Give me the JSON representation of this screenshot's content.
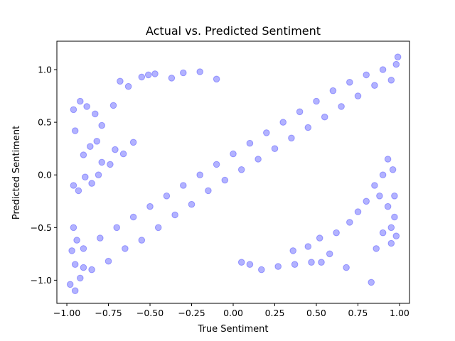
{
  "chart_data": {
    "type": "scatter",
    "title": "Actual vs. Predicted Sentiment",
    "xlabel": "True Sentiment",
    "ylabel": "Predicted Sentiment",
    "xlim": [
      -1.06,
      1.06
    ],
    "ylim": [
      -1.22,
      1.27
    ],
    "xticks": [
      -1.0,
      -0.75,
      -0.5,
      -0.25,
      0.0,
      0.25,
      0.5,
      0.75,
      1.0
    ],
    "xtick_labels": [
      "−1.00",
      "−0.75",
      "−0.50",
      "−0.25",
      "0.00",
      "0.25",
      "0.50",
      "0.75",
      "1.00"
    ],
    "yticks": [
      -1.0,
      -0.5,
      0.0,
      0.5,
      1.0
    ],
    "ytick_labels": [
      "−1.0",
      "−0.5",
      "0.0",
      "0.5",
      "1.0"
    ],
    "grid": false,
    "legend": "none",
    "color": "#0000ff",
    "marker_alpha": 0.3,
    "series": [
      {
        "points": [
          [
            -0.98,
            -1.04
          ],
          [
            -0.95,
            -1.1
          ],
          [
            -0.92,
            -0.98
          ],
          [
            -0.9,
            -0.88
          ],
          [
            -0.97,
            -0.72
          ],
          [
            -0.94,
            -0.62
          ],
          [
            -0.96,
            -0.5
          ],
          [
            -0.95,
            -0.85
          ],
          [
            -0.9,
            -0.7
          ],
          [
            -0.85,
            -0.9
          ],
          [
            -0.8,
            -0.6
          ],
          [
            -0.75,
            -0.82
          ],
          [
            -0.7,
            -0.5
          ],
          [
            -0.65,
            -0.7
          ],
          [
            -0.6,
            -0.4
          ],
          [
            -0.55,
            -0.62
          ],
          [
            -0.5,
            -0.3
          ],
          [
            -0.45,
            -0.5
          ],
          [
            -0.4,
            -0.2
          ],
          [
            -0.35,
            -0.38
          ],
          [
            -0.3,
            -0.1
          ],
          [
            -0.25,
            -0.28
          ],
          [
            -0.2,
            0.0
          ],
          [
            -0.15,
            -0.15
          ],
          [
            -0.1,
            0.1
          ],
          [
            -0.05,
            -0.05
          ],
          [
            0.0,
            0.2
          ],
          [
            0.05,
            0.05
          ],
          [
            0.1,
            0.3
          ],
          [
            0.15,
            0.15
          ],
          [
            0.2,
            0.4
          ],
          [
            0.25,
            0.25
          ],
          [
            0.3,
            0.5
          ],
          [
            0.35,
            0.35
          ],
          [
            0.4,
            0.6
          ],
          [
            0.45,
            0.45
          ],
          [
            0.5,
            0.7
          ],
          [
            0.55,
            0.55
          ],
          [
            0.6,
            0.8
          ],
          [
            0.65,
            0.65
          ],
          [
            0.7,
            0.88
          ],
          [
            0.75,
            0.75
          ],
          [
            0.8,
            0.95
          ],
          [
            0.85,
            0.85
          ],
          [
            0.9,
            1.0
          ],
          [
            0.95,
            0.9
          ],
          [
            0.98,
            1.05
          ],
          [
            0.99,
            1.12
          ],
          [
            -0.96,
            0.62
          ],
          [
            -0.92,
            0.7
          ],
          [
            -0.88,
            0.65
          ],
          [
            -0.83,
            0.58
          ],
          [
            -0.79,
            0.47
          ],
          [
            -0.72,
            0.66
          ],
          [
            -0.68,
            0.89
          ],
          [
            -0.63,
            0.84
          ],
          [
            -0.55,
            0.93
          ],
          [
            -0.51,
            0.95
          ],
          [
            -0.47,
            0.96
          ],
          [
            -0.37,
            0.92
          ],
          [
            -0.3,
            0.97
          ],
          [
            -0.2,
            0.98
          ],
          [
            -0.1,
            0.91
          ],
          [
            -0.95,
            0.42
          ],
          [
            -0.9,
            0.19
          ],
          [
            -0.86,
            0.27
          ],
          [
            -0.82,
            0.32
          ],
          [
            -0.79,
            0.12
          ],
          [
            -0.74,
            0.1
          ],
          [
            -0.71,
            0.24
          ],
          [
            -0.66,
            0.2
          ],
          [
            -0.6,
            0.31
          ],
          [
            -0.96,
            -0.1
          ],
          [
            -0.93,
            -0.15
          ],
          [
            -0.89,
            -0.02
          ],
          [
            -0.85,
            -0.08
          ],
          [
            -0.81,
            0.0
          ],
          [
            0.05,
            -0.83
          ],
          [
            0.1,
            -0.85
          ],
          [
            0.17,
            -0.9
          ],
          [
            0.27,
            -0.87
          ],
          [
            0.37,
            -0.85
          ],
          [
            0.47,
            -0.83
          ],
          [
            0.53,
            -0.83
          ],
          [
            0.58,
            -0.75
          ],
          [
            0.68,
            -0.88
          ],
          [
            0.83,
            -1.02
          ],
          [
            0.86,
            -0.7
          ],
          [
            0.9,
            -0.55
          ],
          [
            0.95,
            -0.5
          ],
          [
            0.98,
            -0.58
          ],
          [
            0.97,
            -0.4
          ],
          [
            0.93,
            -0.3
          ],
          [
            0.88,
            -0.2
          ],
          [
            0.95,
            -0.65
          ],
          [
            0.97,
            -0.2
          ],
          [
            0.96,
            0.05
          ],
          [
            0.93,
            0.15
          ],
          [
            0.9,
            0.0
          ],
          [
            0.85,
            -0.1
          ],
          [
            0.8,
            -0.25
          ],
          [
            0.75,
            -0.35
          ],
          [
            0.7,
            -0.45
          ],
          [
            0.62,
            -0.55
          ],
          [
            0.52,
            -0.6
          ],
          [
            0.45,
            -0.68
          ],
          [
            0.36,
            -0.72
          ]
        ]
      }
    ]
  }
}
